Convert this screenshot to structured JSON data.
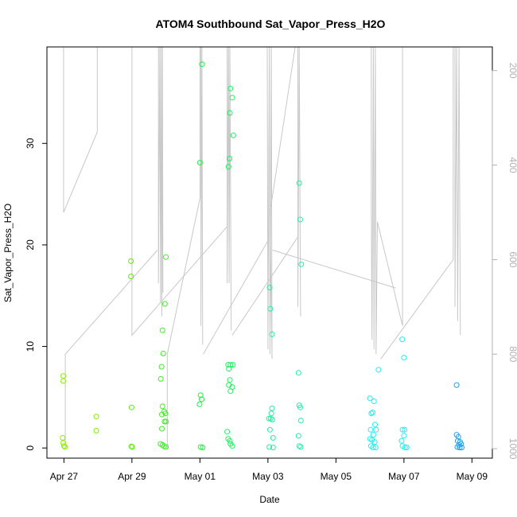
{
  "chart_data": {
    "type": "scatter",
    "title": "ATOM4 Southbound Sat_Vapor_Press_H2O",
    "xlabel": "Date",
    "ylabel": "Sat_Vapor_Press_H2O",
    "x_unit": "days since Apr 27 00:00",
    "xlim": [
      -0.5,
      12.6
    ],
    "ylim": [
      -1.0,
      39.5
    ],
    "x_ticks": [
      {
        "label": "Apr 27",
        "value": 0
      },
      {
        "label": "Apr 29",
        "value": 2
      },
      {
        "label": "May 01",
        "value": 4
      },
      {
        "label": "May 03",
        "value": 6
      },
      {
        "label": "May 05",
        "value": 8
      },
      {
        "label": "May 07",
        "value": 10
      },
      {
        "label": "May 09",
        "value": 12
      }
    ],
    "y_ticks": [
      0,
      10,
      20,
      30
    ],
    "secondary_y": {
      "description": "pressure (inverted, gray profile lines)",
      "ticks": [
        200,
        400,
        600,
        800,
        1000
      ],
      "lim": [
        1020,
        150
      ],
      "color": "#b0b0b0"
    },
    "grid": false,
    "series": [
      {
        "name": "samples",
        "points": [
          {
            "x": -0.02,
            "y": 7.1,
            "color": "#8cf000"
          },
          {
            "x": -0.02,
            "y": 6.6,
            "color": "#8cf000"
          },
          {
            "x": -0.04,
            "y": 1.0,
            "color": "#8cf000"
          },
          {
            "x": -0.02,
            "y": 0.5,
            "color": "#8cf000"
          },
          {
            "x": 0.0,
            "y": 0.2,
            "color": "#8cf000"
          },
          {
            "x": 0.03,
            "y": 0.1,
            "color": "#8cf000"
          },
          {
            "x": 0.95,
            "y": 3.1,
            "color": "#7cf000"
          },
          {
            "x": 0.95,
            "y": 1.7,
            "color": "#7cf000"
          },
          {
            "x": 1.97,
            "y": 18.4,
            "color": "#5cf000"
          },
          {
            "x": 1.97,
            "y": 16.9,
            "color": "#5cf000"
          },
          {
            "x": 1.99,
            "y": 4.0,
            "color": "#5cf000"
          },
          {
            "x": 1.98,
            "y": 0.15,
            "color": "#5cf000"
          },
          {
            "x": 2.01,
            "y": 0.1,
            "color": "#5cf000"
          },
          {
            "x": 2.9,
            "y": 11.6,
            "color": "#3cf020"
          },
          {
            "x": 2.92,
            "y": 9.3,
            "color": "#3cf020"
          },
          {
            "x": 2.87,
            "y": 8.0,
            "color": "#3cf020"
          },
          {
            "x": 2.85,
            "y": 6.8,
            "color": "#3cf020"
          },
          {
            "x": 2.9,
            "y": 4.1,
            "color": "#3cf020"
          },
          {
            "x": 2.95,
            "y": 3.6,
            "color": "#3cf020"
          },
          {
            "x": 2.98,
            "y": 3.4,
            "color": "#3cf020"
          },
          {
            "x": 2.88,
            "y": 3.3,
            "color": "#3cf020"
          },
          {
            "x": 2.96,
            "y": 2.6,
            "color": "#3cf020"
          },
          {
            "x": 3.0,
            "y": 2.6,
            "color": "#3cf020"
          },
          {
            "x": 2.88,
            "y": 1.9,
            "color": "#3cf020"
          },
          {
            "x": 2.84,
            "y": 0.4,
            "color": "#3cf020"
          },
          {
            "x": 2.9,
            "y": 0.3,
            "color": "#3cf020"
          },
          {
            "x": 2.94,
            "y": 0.15,
            "color": "#3cf020"
          },
          {
            "x": 3.0,
            "y": 0.1,
            "color": "#3cf020"
          },
          {
            "x": 2.97,
            "y": 14.2,
            "color": "#3cf020"
          },
          {
            "x": 3.0,
            "y": 18.8,
            "color": "#3cf020"
          },
          {
            "x": 4.06,
            "y": 37.8,
            "color": "#20f040"
          },
          {
            "x": 4.0,
            "y": 28.1,
            "color": "#20f040"
          },
          {
            "x": 4.02,
            "y": 5.2,
            "color": "#20f040"
          },
          {
            "x": 4.05,
            "y": 4.8,
            "color": "#20f040"
          },
          {
            "x": 3.99,
            "y": 4.3,
            "color": "#20f040"
          },
          {
            "x": 4.02,
            "y": 0.1,
            "color": "#20f040"
          },
          {
            "x": 4.08,
            "y": 0.05,
            "color": "#20f040"
          },
          {
            "x": 4.9,
            "y": 35.4,
            "color": "#20f060"
          },
          {
            "x": 4.95,
            "y": 34.5,
            "color": "#20f060"
          },
          {
            "x": 4.88,
            "y": 33.0,
            "color": "#20f060"
          },
          {
            "x": 4.98,
            "y": 30.8,
            "color": "#20f060"
          },
          {
            "x": 4.87,
            "y": 28.5,
            "color": "#20f060"
          },
          {
            "x": 4.84,
            "y": 27.7,
            "color": "#20f060"
          },
          {
            "x": 4.83,
            "y": 8.2,
            "color": "#20f060"
          },
          {
            "x": 4.9,
            "y": 8.2,
            "color": "#20f060"
          },
          {
            "x": 4.97,
            "y": 8.2,
            "color": "#20f060"
          },
          {
            "x": 4.85,
            "y": 7.8,
            "color": "#20f060"
          },
          {
            "x": 4.88,
            "y": 6.7,
            "color": "#20f060"
          },
          {
            "x": 4.85,
            "y": 6.2,
            "color": "#20f060"
          },
          {
            "x": 4.95,
            "y": 6.0,
            "color": "#20f060"
          },
          {
            "x": 4.9,
            "y": 5.6,
            "color": "#20f060"
          },
          {
            "x": 4.8,
            "y": 1.6,
            "color": "#20f060"
          },
          {
            "x": 4.83,
            "y": 0.9,
            "color": "#20f060"
          },
          {
            "x": 4.88,
            "y": 0.7,
            "color": "#20f060"
          },
          {
            "x": 4.9,
            "y": 0.4,
            "color": "#20f060"
          },
          {
            "x": 4.95,
            "y": 0.2,
            "color": "#20f060"
          },
          {
            "x": 6.05,
            "y": 15.8,
            "color": "#20f0a0"
          },
          {
            "x": 6.07,
            "y": 13.7,
            "color": "#20f0a0"
          },
          {
            "x": 6.12,
            "y": 11.2,
            "color": "#20f0a0"
          },
          {
            "x": 6.12,
            "y": 3.9,
            "color": "#20f0a0"
          },
          {
            "x": 6.1,
            "y": 3.4,
            "color": "#20f0a0"
          },
          {
            "x": 6.03,
            "y": 2.9,
            "color": "#20f0a0"
          },
          {
            "x": 6.08,
            "y": 2.9,
            "color": "#20f0a0"
          },
          {
            "x": 6.13,
            "y": 2.8,
            "color": "#20f0a0"
          },
          {
            "x": 6.06,
            "y": 1.8,
            "color": "#20f0a0"
          },
          {
            "x": 6.15,
            "y": 1.0,
            "color": "#20f0a0"
          },
          {
            "x": 6.04,
            "y": 0.1,
            "color": "#20f0a0"
          },
          {
            "x": 6.15,
            "y": 0.05,
            "color": "#20f0a0"
          },
          {
            "x": 6.92,
            "y": 26.1,
            "color": "#20f0b0"
          },
          {
            "x": 6.95,
            "y": 22.5,
            "color": "#20f0b0"
          },
          {
            "x": 6.98,
            "y": 18.1,
            "color": "#20f0b0"
          },
          {
            "x": 6.9,
            "y": 7.4,
            "color": "#20f0b0"
          },
          {
            "x": 6.92,
            "y": 4.2,
            "color": "#20f0b0"
          },
          {
            "x": 6.95,
            "y": 4.0,
            "color": "#20f0b0"
          },
          {
            "x": 6.97,
            "y": 2.7,
            "color": "#20f0b0"
          },
          {
            "x": 6.9,
            "y": 1.2,
            "color": "#20f0b0"
          },
          {
            "x": 6.92,
            "y": 0.2,
            "color": "#20f0b0"
          },
          {
            "x": 6.96,
            "y": 0.1,
            "color": "#20f0b0"
          },
          {
            "x": 9.0,
            "y": 4.9,
            "color": "#20f0f0"
          },
          {
            "x": 9.12,
            "y": 4.6,
            "color": "#20f0f0"
          },
          {
            "x": 9.08,
            "y": 3.5,
            "color": "#20f0f0"
          },
          {
            "x": 9.04,
            "y": 3.4,
            "color": "#20f0f0"
          },
          {
            "x": 9.15,
            "y": 2.3,
            "color": "#20f0f0"
          },
          {
            "x": 9.02,
            "y": 1.8,
            "color": "#20f0f0"
          },
          {
            "x": 9.18,
            "y": 1.8,
            "color": "#20f0f0"
          },
          {
            "x": 9.1,
            "y": 1.3,
            "color": "#20f0f0"
          },
          {
            "x": 9.0,
            "y": 0.9,
            "color": "#20f0f0"
          },
          {
            "x": 9.06,
            "y": 0.8,
            "color": "#20f0f0"
          },
          {
            "x": 9.14,
            "y": 0.6,
            "color": "#20f0f0"
          },
          {
            "x": 9.03,
            "y": 0.2,
            "color": "#20f0f0"
          },
          {
            "x": 9.09,
            "y": 0.05,
            "color": "#20f0f0"
          },
          {
            "x": 9.17,
            "y": 0.05,
            "color": "#20f0f0"
          },
          {
            "x": 9.25,
            "y": 7.7,
            "color": "#20f0f0"
          },
          {
            "x": 9.95,
            "y": 10.7,
            "color": "#20f0f0"
          },
          {
            "x": 10.0,
            "y": 8.9,
            "color": "#20f0f0"
          },
          {
            "x": 9.96,
            "y": 1.8,
            "color": "#20f0f0"
          },
          {
            "x": 10.02,
            "y": 1.8,
            "color": "#20f0f0"
          },
          {
            "x": 10.0,
            "y": 1.2,
            "color": "#20f0f0"
          },
          {
            "x": 9.93,
            "y": 0.7,
            "color": "#20f0f0"
          },
          {
            "x": 9.96,
            "y": 0.2,
            "color": "#20f0f0"
          },
          {
            "x": 10.03,
            "y": 0.05,
            "color": "#20f0f0"
          },
          {
            "x": 10.08,
            "y": 0.05,
            "color": "#20f0f0"
          },
          {
            "x": 11.55,
            "y": 6.2,
            "color": "#20a0f0"
          },
          {
            "x": 11.55,
            "y": 1.3,
            "color": "#20a0f0"
          },
          {
            "x": 11.6,
            "y": 1.1,
            "color": "#20a0f0"
          },
          {
            "x": 11.58,
            "y": 0.7,
            "color": "#20a0f0"
          },
          {
            "x": 11.65,
            "y": 0.6,
            "color": "#20a0f0"
          },
          {
            "x": 11.68,
            "y": 0.4,
            "color": "#20a0f0"
          },
          {
            "x": 11.62,
            "y": 0.3,
            "color": "#20a0f0"
          },
          {
            "x": 11.57,
            "y": 0.1,
            "color": "#20a0f0"
          },
          {
            "x": 11.64,
            "y": 0.05,
            "color": "#20a0f0"
          },
          {
            "x": 11.7,
            "y": 0.05,
            "color": "#20a0f0"
          }
        ]
      }
    ],
    "profile_lines": {
      "color": "#c8c8c8",
      "segments": [
        [
          [
            -0.01,
            150
          ],
          [
            -0.01,
            500
          ],
          [
            0.98,
            330
          ],
          [
            0.98,
            150
          ]
        ],
        [
          [
            0.04,
            1000
          ],
          [
            0.04,
            800
          ],
          [
            2.75,
            580
          ]
        ],
        [
          [
            2.0,
            150
          ],
          [
            2.0,
            760
          ],
          [
            4.8,
            530
          ]
        ],
        [
          [
            2.78,
            150
          ],
          [
            2.78,
            650
          ],
          [
            2.82,
            150
          ],
          [
            2.84,
            690
          ],
          [
            2.86,
            150
          ],
          [
            2.88,
            720
          ],
          [
            2.9,
            150
          ],
          [
            2.91,
            670
          ]
        ],
        [
          [
            3.04,
            1000
          ],
          [
            3.04,
            800
          ],
          [
            4.0,
            470
          ],
          [
            4.0,
            150
          ]
        ],
        [
          [
            4.03,
            150
          ],
          [
            4.03,
            740
          ],
          [
            4.06,
            150
          ],
          [
            4.08,
            780
          ]
        ],
        [
          [
            4.1,
            800
          ],
          [
            6.0,
            560
          ]
        ],
        [
          [
            4.8,
            150
          ],
          [
            4.8,
            650
          ],
          [
            4.84,
            150
          ],
          [
            4.86,
            650
          ],
          [
            4.88,
            150
          ],
          [
            4.92,
            750
          ]
        ],
        [
          [
            4.95,
            760
          ],
          [
            6.9,
            550
          ]
        ],
        [
          [
            5.98,
            150
          ],
          [
            6.0,
            790
          ],
          [
            6.04,
            150
          ],
          [
            6.06,
            800
          ],
          [
            6.1,
            150
          ],
          [
            6.12,
            810
          ],
          [
            6.06,
            500
          ],
          [
            6.8,
            150
          ]
        ],
        [
          [
            6.14,
            580
          ],
          [
            9.76,
            660
          ]
        ],
        [
          [
            6.88,
            150
          ],
          [
            6.88,
            700
          ],
          [
            6.92,
            150
          ],
          [
            6.96,
            720
          ]
        ],
        [
          [
            9.04,
            150
          ],
          [
            9.04,
            480
          ],
          [
            9.06,
            770
          ],
          [
            9.1,
            150
          ],
          [
            9.12,
            790
          ],
          [
            9.16,
            150
          ],
          [
            9.18,
            800
          ],
          [
            9.22,
            520
          ],
          [
            9.96,
            740
          ],
          [
            9.96,
            150
          ]
        ],
        [
          [
            9.32,
            810
          ],
          [
            11.45,
            600
          ],
          [
            11.45,
            150
          ]
        ],
        [
          [
            11.5,
            150
          ],
          [
            11.5,
            700
          ],
          [
            11.55,
            150
          ],
          [
            11.58,
            730
          ],
          [
            11.62,
            150
          ],
          [
            11.66,
            760
          ]
        ]
      ]
    }
  }
}
